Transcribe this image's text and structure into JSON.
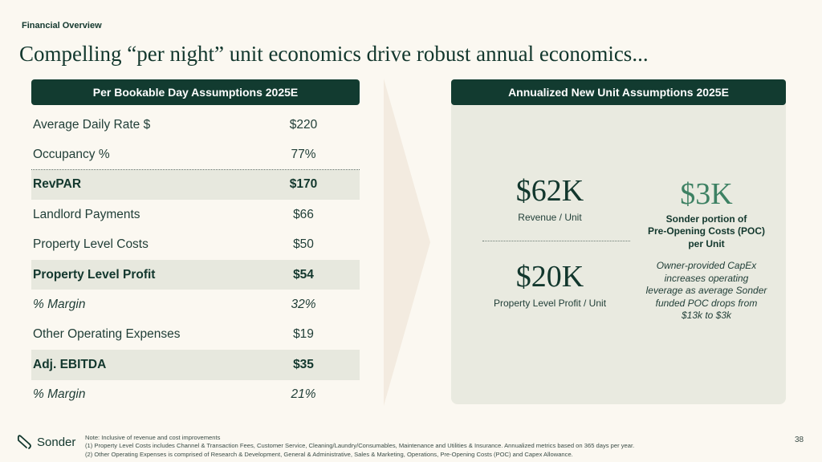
{
  "header": {
    "section_label": "Financial Overview",
    "title": "Compelling “per night” unit economics drive robust annual economics..."
  },
  "left_table": {
    "title": "Per Bookable Day Assumptions 2025E",
    "rows": [
      {
        "label": "Average Daily Rate $",
        "value": "$220",
        "style": "normal"
      },
      {
        "label": "Occupancy %",
        "value": "77%",
        "style": "normal"
      },
      {
        "label": "RevPAR",
        "value": "$170",
        "style": "bold"
      },
      {
        "label": "Landlord Payments",
        "value": "$66",
        "style": "normal"
      },
      {
        "label": "Property Level Costs",
        "value": "$50",
        "style": "normal"
      },
      {
        "label": "Property Level Profit",
        "value": "$54",
        "style": "bold"
      },
      {
        "label": "% Margin",
        "value": "32%",
        "style": "italic"
      },
      {
        "label": "Other Operating Expenses",
        "value": "$19",
        "style": "normal"
      },
      {
        "label": "Adj. EBITDA",
        "value": "$35",
        "style": "bold"
      },
      {
        "label": "% Margin",
        "value": "21%",
        "style": "italic"
      }
    ]
  },
  "right_panel": {
    "title": "Annualized New Unit Assumptions 2025E",
    "revenue": {
      "value": "$62K",
      "label": "Revenue / Unit"
    },
    "profit": {
      "value": "$20K",
      "label": "Property Level Profit / Unit"
    },
    "poc": {
      "value": "$3K",
      "label_line1": "Sonder portion of",
      "label_line2": "Pre-Opening Costs (POC)",
      "label_line3": "per Unit"
    },
    "capex_note": {
      "line1": "Owner-provided CapEx",
      "line2": "increases operating",
      "line3": "leverage as average Sonder",
      "line4": "funded POC drops from",
      "line5": "$13k to $3k"
    }
  },
  "footer": {
    "logo_text": "Sonder",
    "note1": "Note: Inclusive of revenue and cost improvements",
    "note2": "(1) Property Level Costs includes Channel & Transaction Fees, Customer Service, Cleaning/Laundry/Consumables, Maintenance and Utilities & Insurance. Annualized metrics based on 365 days per year.",
    "note3": "(2) Other Operating Expenses is comprised of Research & Development, General & Administrative, Sales & Marketing, Operations, Pre-Opening Costs (POC) and Capex Allowance.",
    "page_number": "38"
  },
  "colors": {
    "dark_green": "#123b30",
    "accent_green": "#3d8163",
    "panel_bg": "#e9eae0",
    "page_bg": "#fbf8f1"
  }
}
